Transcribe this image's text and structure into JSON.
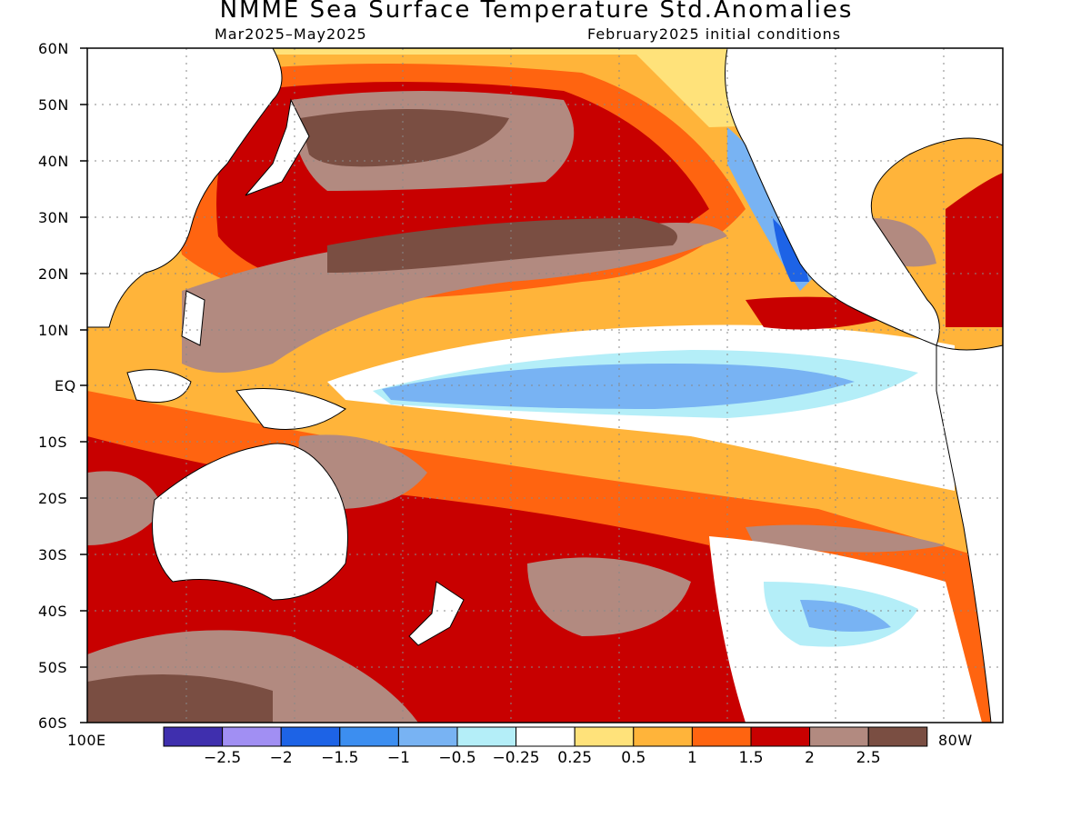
{
  "title": "NMME Sea Surface Temperature Std.Anomalies",
  "subtitle_period": "Mar2025–May2025",
  "subtitle_init": "February2025 initial conditions",
  "lat_labels": [
    "60N",
    "50N",
    "40N",
    "30N",
    "20N",
    "10N",
    "EQ",
    "10S",
    "20S",
    "30S",
    "40S",
    "50S",
    "60S"
  ],
  "lon_left": "100E",
  "lon_right": "80W",
  "colorbar": {
    "colors": [
      "#3f2fae",
      "#a18ff3",
      "#1d63e6",
      "#3c8ef0",
      "#78b3f3",
      "#b4eef8",
      "#ffffff",
      "#ffe27a",
      "#ffb43a",
      "#ff6410",
      "#c80000",
      "#b28a80",
      "#7a4e42"
    ],
    "labels": [
      "−2.5",
      "−2",
      "−1.5",
      "−1",
      "−0.5",
      "−0.25",
      "0.25",
      "0.5",
      "1",
      "1.5",
      "2",
      "2.5"
    ]
  }
}
